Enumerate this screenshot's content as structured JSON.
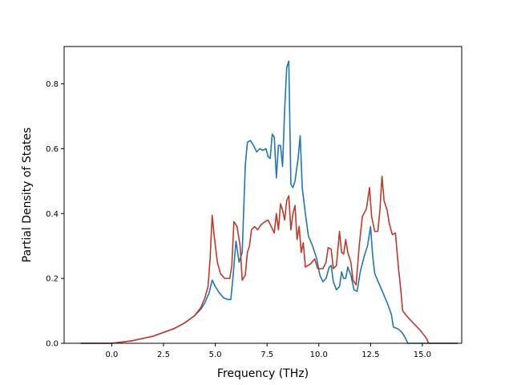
{
  "chart_data": {
    "type": "line",
    "title": "",
    "xlabel": "Frequency (THz)",
    "ylabel": "Partial Density of States",
    "xlim": [
      -2.3,
      16.9
    ],
    "ylim": [
      0.0,
      0.915
    ],
    "xticks": [
      0.0,
      2.5,
      5.0,
      7.5,
      10.0,
      12.5,
      15.0
    ],
    "xtick_labels": [
      "0.0",
      "2.5",
      "5.0",
      "7.5",
      "10.0",
      "12.5",
      "15.0"
    ],
    "yticks": [
      0.0,
      0.2,
      0.4,
      0.6,
      0.8
    ],
    "ytick_labels": [
      "0.0",
      "0.2",
      "0.4",
      "0.6",
      "0.8"
    ],
    "grid": false,
    "legend": "none",
    "series": [
      {
        "color": "#1f77b4",
        "points": [
          [
            -1.5,
            0.0
          ],
          [
            0.0,
            0.0
          ],
          [
            1.0,
            0.008
          ],
          [
            2.0,
            0.022
          ],
          [
            3.0,
            0.045
          ],
          [
            3.5,
            0.062
          ],
          [
            4.0,
            0.085
          ],
          [
            4.3,
            0.105
          ],
          [
            4.5,
            0.125
          ],
          [
            4.7,
            0.155
          ],
          [
            4.85,
            0.195
          ],
          [
            5.0,
            0.175
          ],
          [
            5.2,
            0.155
          ],
          [
            5.4,
            0.14
          ],
          [
            5.6,
            0.135
          ],
          [
            5.75,
            0.135
          ],
          [
            5.85,
            0.2
          ],
          [
            6.0,
            0.315
          ],
          [
            6.15,
            0.25
          ],
          [
            6.3,
            0.28
          ],
          [
            6.45,
            0.55
          ],
          [
            6.55,
            0.62
          ],
          [
            6.7,
            0.625
          ],
          [
            6.85,
            0.61
          ],
          [
            7.0,
            0.59
          ],
          [
            7.15,
            0.6
          ],
          [
            7.3,
            0.595
          ],
          [
            7.45,
            0.6
          ],
          [
            7.55,
            0.575
          ],
          [
            7.65,
            0.57
          ],
          [
            7.75,
            0.645
          ],
          [
            7.85,
            0.635
          ],
          [
            7.95,
            0.51
          ],
          [
            8.05,
            0.61
          ],
          [
            8.15,
            0.61
          ],
          [
            8.25,
            0.545
          ],
          [
            8.35,
            0.72
          ],
          [
            8.45,
            0.85
          ],
          [
            8.55,
            0.87
          ],
          [
            8.65,
            0.49
          ],
          [
            8.75,
            0.48
          ],
          [
            8.85,
            0.5
          ],
          [
            9.0,
            0.57
          ],
          [
            9.1,
            0.64
          ],
          [
            9.2,
            0.48
          ],
          [
            9.35,
            0.4
          ],
          [
            9.5,
            0.33
          ],
          [
            9.7,
            0.3
          ],
          [
            9.9,
            0.26
          ],
          [
            10.05,
            0.21
          ],
          [
            10.2,
            0.19
          ],
          [
            10.35,
            0.2
          ],
          [
            10.5,
            0.235
          ],
          [
            10.6,
            0.24
          ],
          [
            10.7,
            0.19
          ],
          [
            10.85,
            0.165
          ],
          [
            11.0,
            0.175
          ],
          [
            11.1,
            0.22
          ],
          [
            11.2,
            0.2
          ],
          [
            11.3,
            0.2
          ],
          [
            11.4,
            0.235
          ],
          [
            11.55,
            0.21
          ],
          [
            11.7,
            0.165
          ],
          [
            11.85,
            0.16
          ],
          [
            12.0,
            0.22
          ],
          [
            12.2,
            0.27
          ],
          [
            12.35,
            0.3
          ],
          [
            12.5,
            0.36
          ],
          [
            12.6,
            0.27
          ],
          [
            12.7,
            0.215
          ],
          [
            12.9,
            0.185
          ],
          [
            13.1,
            0.155
          ],
          [
            13.3,
            0.125
          ],
          [
            13.5,
            0.09
          ],
          [
            13.6,
            0.05
          ],
          [
            13.8,
            0.045
          ],
          [
            14.0,
            0.035
          ],
          [
            14.15,
            0.02
          ],
          [
            14.3,
            0.0
          ],
          [
            16.7,
            0.0
          ]
        ]
      },
      {
        "color": "#c0392b",
        "points": [
          [
            -1.5,
            0.0
          ],
          [
            0.0,
            0.0
          ],
          [
            1.0,
            0.008
          ],
          [
            2.0,
            0.022
          ],
          [
            3.0,
            0.045
          ],
          [
            3.5,
            0.062
          ],
          [
            4.0,
            0.085
          ],
          [
            4.3,
            0.11
          ],
          [
            4.5,
            0.14
          ],
          [
            4.65,
            0.175
          ],
          [
            4.75,
            0.26
          ],
          [
            4.85,
            0.395
          ],
          [
            4.95,
            0.33
          ],
          [
            5.1,
            0.25
          ],
          [
            5.25,
            0.215
          ],
          [
            5.45,
            0.2
          ],
          [
            5.7,
            0.2
          ],
          [
            5.8,
            0.24
          ],
          [
            5.9,
            0.375
          ],
          [
            6.05,
            0.36
          ],
          [
            6.2,
            0.3
          ],
          [
            6.3,
            0.195
          ],
          [
            6.45,
            0.21
          ],
          [
            6.55,
            0.28
          ],
          [
            6.65,
            0.3
          ],
          [
            6.75,
            0.35
          ],
          [
            6.9,
            0.36
          ],
          [
            7.05,
            0.35
          ],
          [
            7.2,
            0.365
          ],
          [
            7.4,
            0.375
          ],
          [
            7.55,
            0.38
          ],
          [
            7.7,
            0.36
          ],
          [
            7.85,
            0.34
          ],
          [
            7.95,
            0.4
          ],
          [
            8.05,
            0.35
          ],
          [
            8.15,
            0.43
          ],
          [
            8.25,
            0.41
          ],
          [
            8.35,
            0.38
          ],
          [
            8.45,
            0.44
          ],
          [
            8.55,
            0.455
          ],
          [
            8.65,
            0.35
          ],
          [
            8.75,
            0.4
          ],
          [
            8.85,
            0.425
          ],
          [
            8.95,
            0.32
          ],
          [
            9.05,
            0.36
          ],
          [
            9.15,
            0.28
          ],
          [
            9.25,
            0.31
          ],
          [
            9.35,
            0.235
          ],
          [
            9.6,
            0.245
          ],
          [
            9.8,
            0.26
          ],
          [
            9.95,
            0.23
          ],
          [
            10.2,
            0.23
          ],
          [
            10.35,
            0.25
          ],
          [
            10.45,
            0.295
          ],
          [
            10.6,
            0.29
          ],
          [
            10.7,
            0.23
          ],
          [
            10.85,
            0.24
          ],
          [
            11.0,
            0.345
          ],
          [
            11.1,
            0.28
          ],
          [
            11.2,
            0.275
          ],
          [
            11.3,
            0.32
          ],
          [
            11.4,
            0.28
          ],
          [
            11.55,
            0.25
          ],
          [
            11.65,
            0.195
          ],
          [
            11.8,
            0.18
          ],
          [
            11.95,
            0.3
          ],
          [
            12.1,
            0.39
          ],
          [
            12.3,
            0.415
          ],
          [
            12.45,
            0.48
          ],
          [
            12.55,
            0.39
          ],
          [
            12.7,
            0.345
          ],
          [
            12.85,
            0.345
          ],
          [
            12.95,
            0.41
          ],
          [
            13.05,
            0.515
          ],
          [
            13.15,
            0.44
          ],
          [
            13.3,
            0.41
          ],
          [
            13.4,
            0.37
          ],
          [
            13.55,
            0.335
          ],
          [
            13.7,
            0.34
          ],
          [
            13.85,
            0.23
          ],
          [
            13.95,
            0.17
          ],
          [
            14.05,
            0.1
          ],
          [
            14.3,
            0.08
          ],
          [
            14.6,
            0.06
          ],
          [
            14.9,
            0.04
          ],
          [
            15.2,
            0.015
          ],
          [
            15.3,
            0.0
          ],
          [
            16.7,
            0.0
          ]
        ]
      }
    ]
  }
}
